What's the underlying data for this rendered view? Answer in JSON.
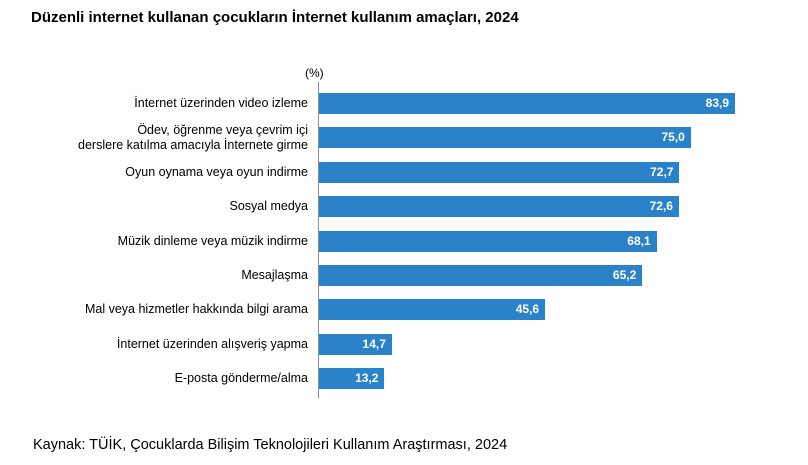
{
  "title": "Düzenli internet kullanan çocukların İnternet kullanım amaçları, 2024",
  "unit_label": "(%)",
  "source": "Kaynak: TÜİK, Çocuklarda Bilişim Teknolojileri Kullanım Araştırması, 2024",
  "colors": {
    "bar": "#2a82c9",
    "value_text": "#ffffff",
    "axis": "#8c8c8c"
  },
  "chart_data": {
    "type": "bar",
    "orientation": "horizontal",
    "title": "Düzenli internet kullanan çocukların İnternet kullanım amaçları, 2024",
    "ylabel": "(%)",
    "xlim": [
      0,
      100
    ],
    "grid": false,
    "categories": [
      "İnternet üzerinden video izleme",
      "Ödev, öğrenme veya çevrim içi\nderslere katılma amacıyla İnternete girme",
      "Oyun oynama veya oyun indirme",
      "Sosyal medya",
      "Müzik dinleme veya müzik indirme",
      "Mesajlaşma",
      "Mal veya hizmetler hakkında bilgi arama",
      "İnternet üzerinden alışveriş yapma",
      "E-posta gönderme/alma"
    ],
    "values": [
      83.9,
      75.0,
      72.7,
      72.6,
      68.1,
      65.2,
      45.6,
      14.7,
      13.2
    ],
    "value_labels": [
      "83,9",
      "75,0",
      "72,7",
      "72,6",
      "68,1",
      "65,2",
      "45,6",
      "14,7",
      "13,2"
    ]
  }
}
